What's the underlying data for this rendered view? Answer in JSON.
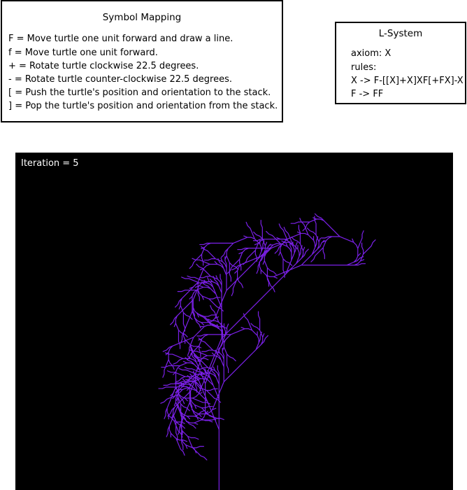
{
  "symbol_mapping": {
    "title": "Symbol Mapping",
    "lines": [
      "F = Move turtle one unit forward and draw a line.",
      "f = Move turtle one unit forward.",
      "+ = Rotate turtle clockwise 22.5 degrees.",
      "- = Rotate turtle counter-clockwise 22.5 degrees.",
      "[ = Push the turtle's position and orientation to the stack.",
      "] = Pop the turtle's position and orientation from the stack."
    ]
  },
  "lsystem": {
    "title": "L-System",
    "axiom_line": "axiom: X",
    "rules_label": "rules:",
    "rules": [
      "X -> F-[[X]+X]XF[+FX]-X",
      "F -> FF"
    ]
  },
  "canvas": {
    "iteration_label": "Iteration = 5",
    "background_color": "#000000",
    "stroke_color": "#7b20e8",
    "label_color": "#ffffff"
  },
  "lsystem_params": {
    "axiom": "X",
    "rules": {
      "X": "F-[[X]+X]XF[+FX]-X",
      "F": "FF"
    },
    "angle_degrees": 22.5,
    "iterations": 5
  }
}
